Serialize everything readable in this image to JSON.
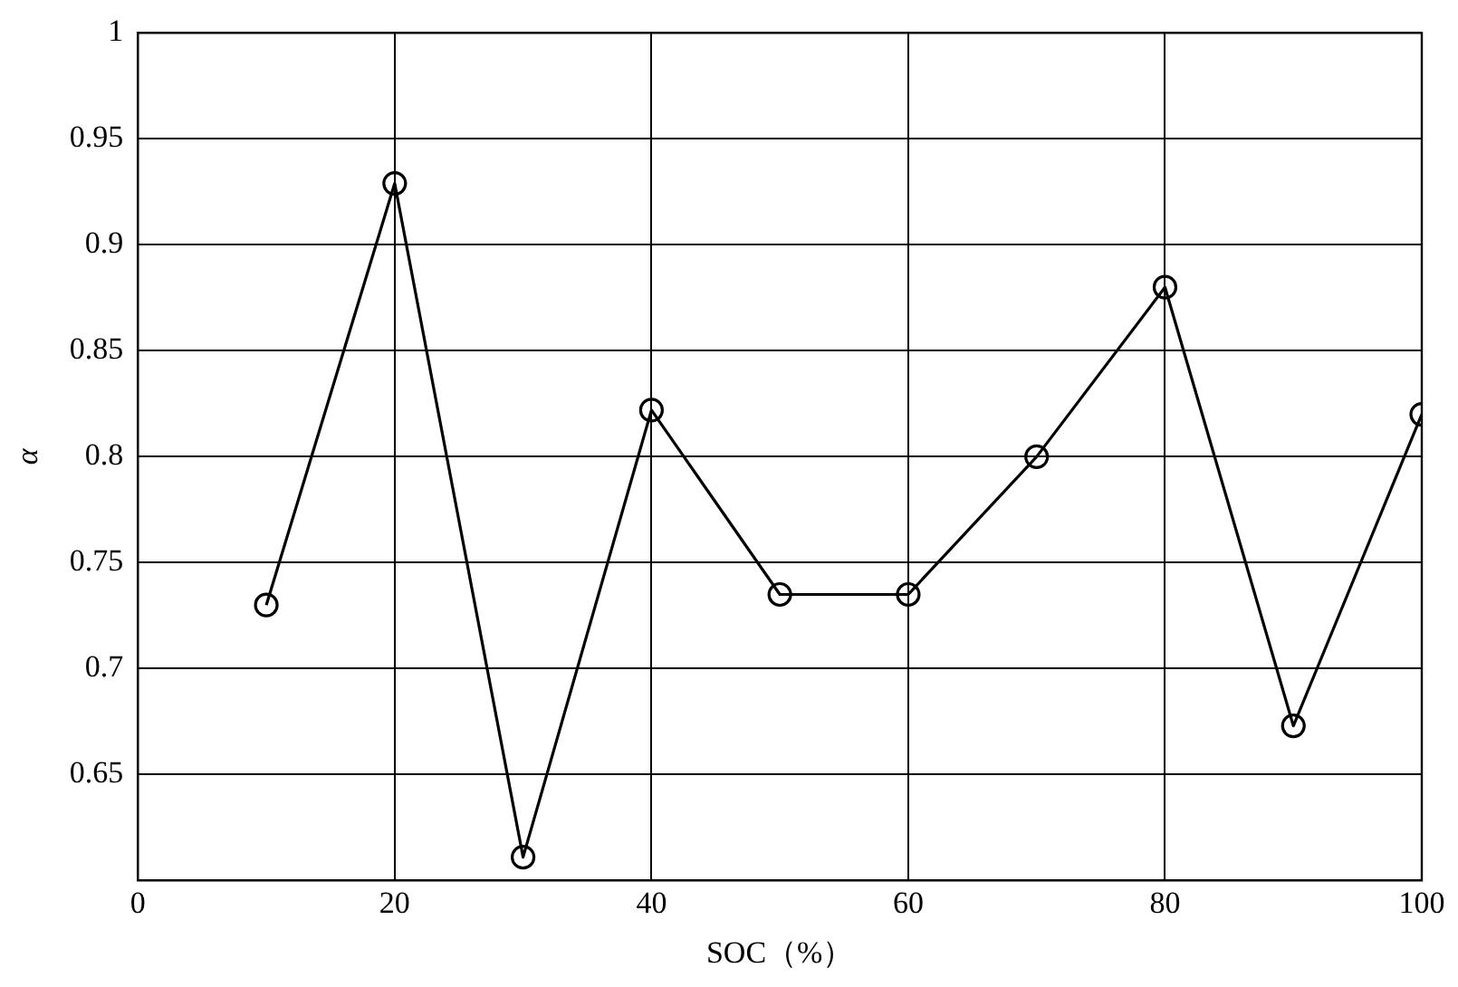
{
  "chart_data": {
    "type": "line",
    "xlabel": "SOC（%）",
    "ylabel": "α",
    "x": [
      10,
      20,
      30,
      40,
      50,
      60,
      70,
      80,
      90,
      100
    ],
    "series": [
      {
        "color": "#000000",
        "values": [
          0.73,
          0.929,
          0.611,
          0.822,
          0.735,
          0.735,
          0.8,
          0.88,
          0.673,
          0.82
        ]
      }
    ],
    "xlim": [
      0,
      100
    ],
    "xticks": [
      0,
      20,
      40,
      60,
      80,
      100
    ],
    "ylim": [
      0.6,
      1
    ],
    "yticks": [
      0.65,
      0.7,
      0.75,
      0.8,
      0.85,
      0.9,
      0.95,
      1
    ],
    "grid": true,
    "legend": false,
    "marker": "circle",
    "line_style": "solid"
  }
}
